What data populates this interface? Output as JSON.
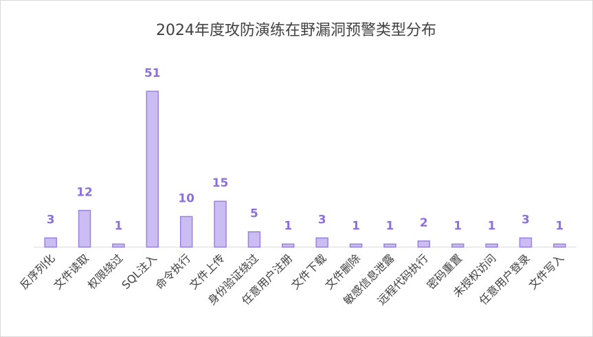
{
  "chart_data": {
    "type": "bar",
    "title": "2024年度攻防演练在野漏洞预警类型分布",
    "categories": [
      "反序列化",
      "文件读取",
      "权限绕过",
      "SQL注入",
      "命令执行",
      "文件上传",
      "身份验证绕过",
      "任意用户注册",
      "文件下载",
      "文件删除",
      "敏感信息泄露",
      "远程代码执行",
      "密码重置",
      "未授权访问",
      "任意用户登录",
      "文件写入"
    ],
    "values": [
      3,
      12,
      1,
      51,
      10,
      15,
      5,
      1,
      3,
      1,
      1,
      2,
      1,
      1,
      3,
      1
    ],
    "color": "#cbbdf3",
    "border_color": "#9a80e3",
    "label_color": "#8d6fdc"
  }
}
